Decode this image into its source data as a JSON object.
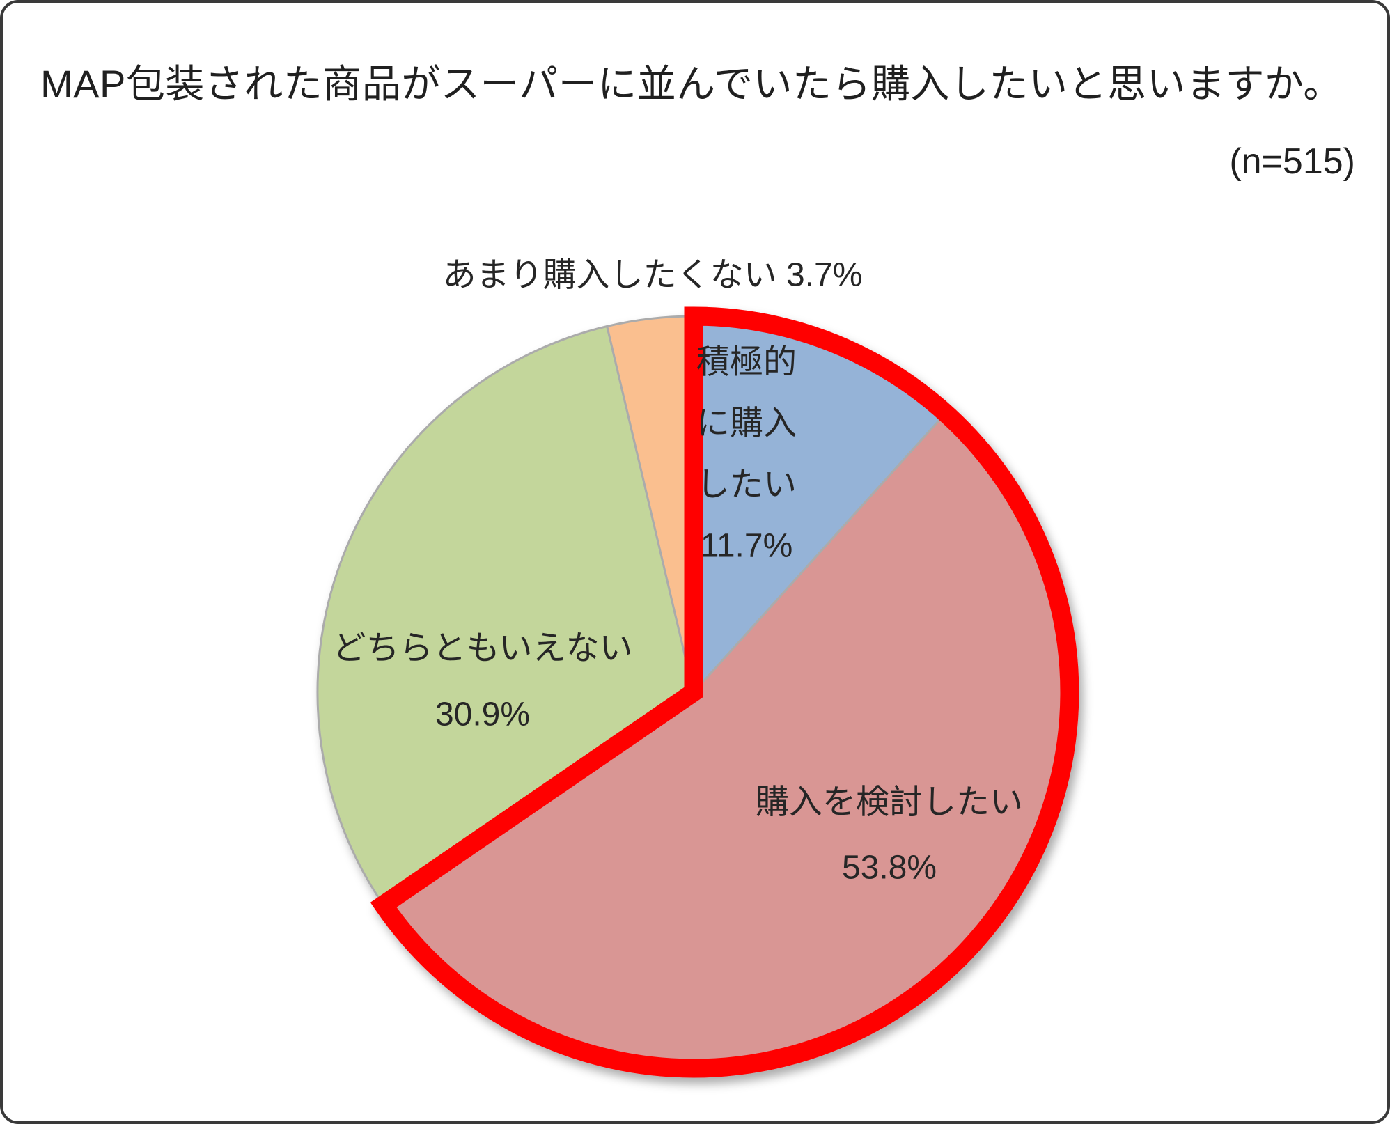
{
  "chart_data": {
    "type": "pie",
    "title": "MAP包装された商品がスーパーに並んでいたら購入したいと思いますか。",
    "n_label": "(n=515)",
    "categories": [
      "積極的に購入したい",
      "購入を検討したい",
      "どちらともいえない",
      "あまり購入したくない"
    ],
    "values": [
      11.7,
      53.8,
      30.9,
      3.7
    ],
    "value_labels": [
      "11.7%",
      "53.8%",
      "30.9%",
      "3.7%"
    ],
    "colors": [
      "#95B3D7",
      "#D99694",
      "#C3D69B",
      "#FABF8F"
    ],
    "slice_border_color": "#ABABAB",
    "start_position": "12-oclock",
    "direction": "clockwise",
    "legend": "none",
    "labels_on_chart": true,
    "highlight_outline": {
      "color": "#FF0000",
      "covers_categories": [
        "積極的に購入したい",
        "購入を検討したい"
      ],
      "covers_values": [
        11.7,
        53.8
      ]
    }
  }
}
